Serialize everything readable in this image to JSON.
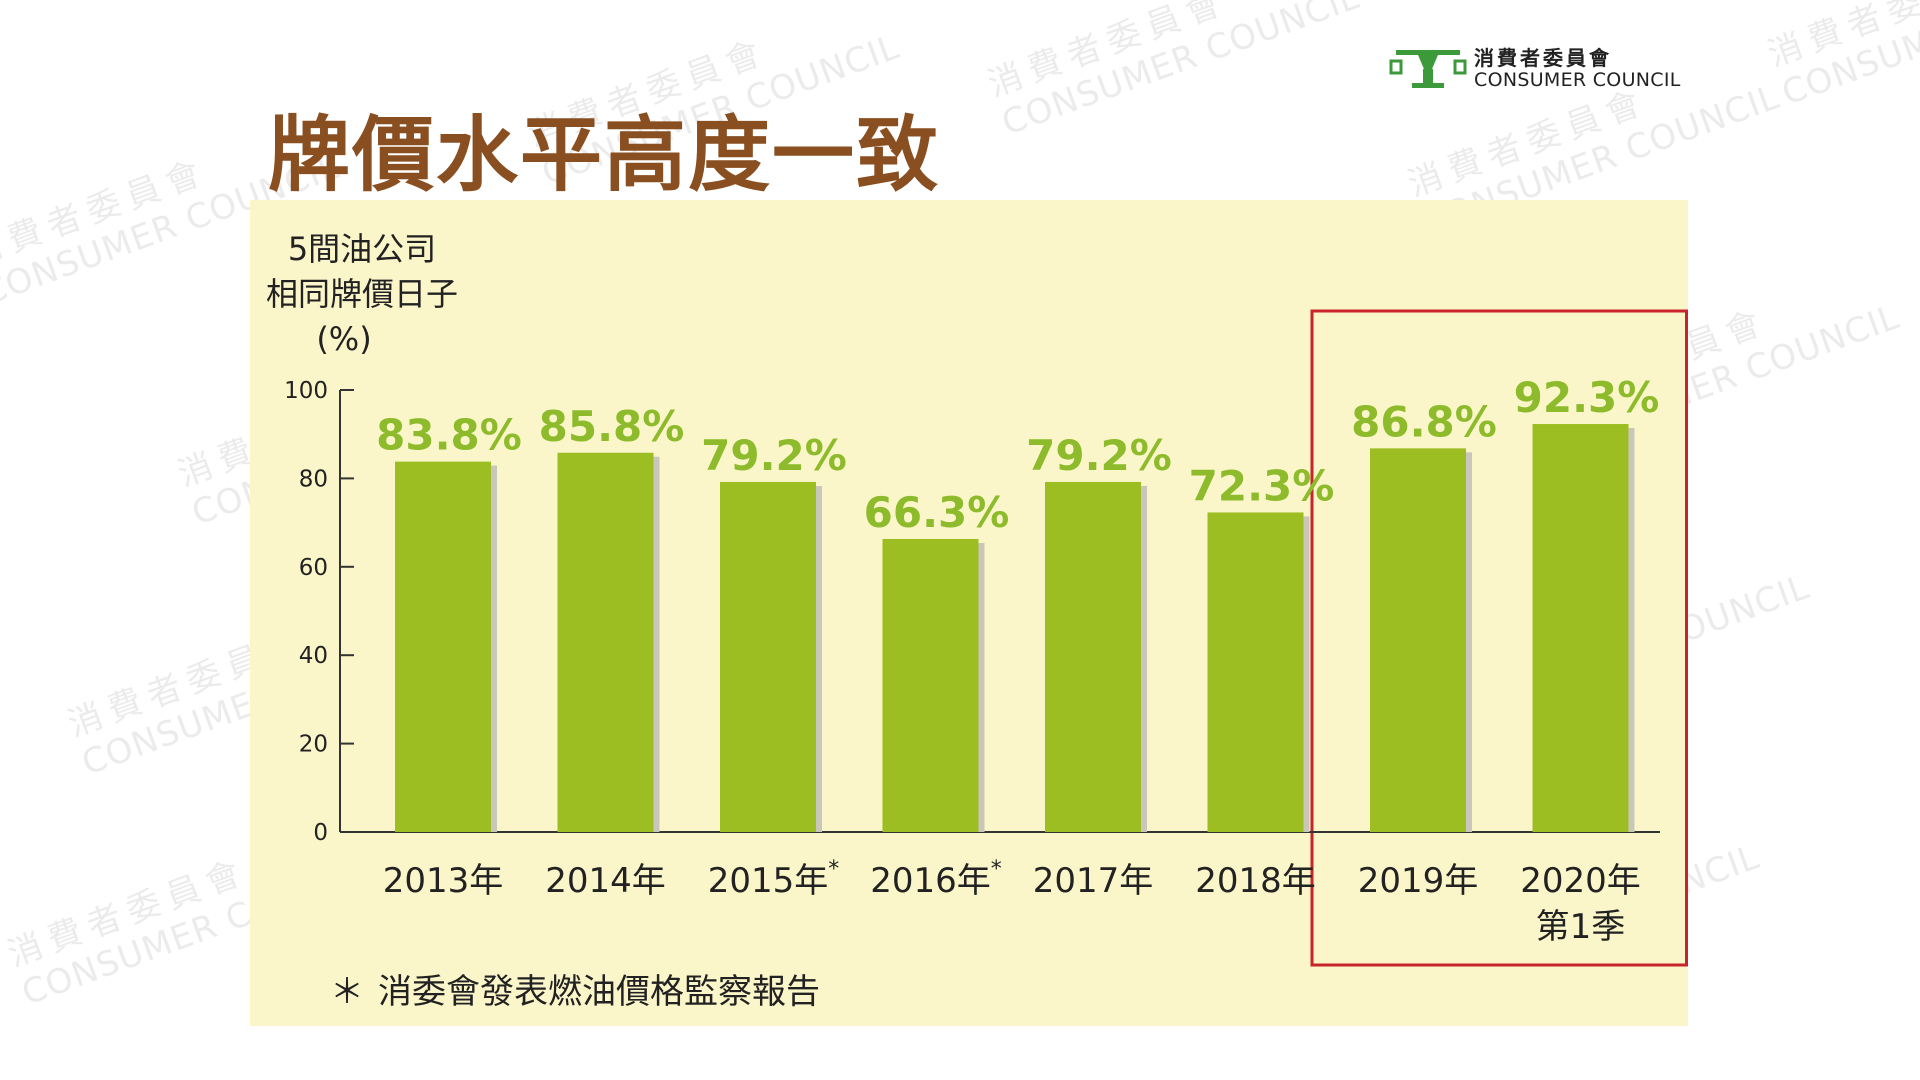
{
  "header": {
    "title": "牌價水平高度一致"
  },
  "logo": {
    "name_zh": "消費者委員會",
    "name_en": "CONSUMER COUNCIL"
  },
  "watermark": {
    "zh": "消費者委員會",
    "en": "CONSUMER COUNCIL"
  },
  "colors": {
    "bar": "#9dbe23",
    "bar_shadow": "#c9c6bb",
    "value_label": "#8dbb2c",
    "highlight_box": "#c8242b",
    "panel_bg": "#fbf6c9",
    "title": "#8a4f21"
  },
  "chart_data": {
    "type": "bar",
    "ylabel": [
      "5間油公司",
      "相同牌價日子",
      "(%)"
    ],
    "ylim": [
      0,
      100
    ],
    "yticks": [
      0,
      20,
      40,
      60,
      80,
      100
    ],
    "categories": [
      {
        "label": "2013年",
        "mark": "",
        "line2": ""
      },
      {
        "label": "2014年",
        "mark": "",
        "line2": ""
      },
      {
        "label": "2015年",
        "mark": "*",
        "line2": ""
      },
      {
        "label": "2016年",
        "mark": "*",
        "line2": ""
      },
      {
        "label": "2017年",
        "mark": "",
        "line2": ""
      },
      {
        "label": "2018年",
        "mark": "",
        "line2": ""
      },
      {
        "label": "2019年",
        "mark": "",
        "line2": ""
      },
      {
        "label": "2020年",
        "mark": "",
        "line2": "第1季"
      }
    ],
    "values": [
      83.8,
      85.8,
      79.2,
      66.3,
      79.2,
      72.3,
      86.8,
      92.3
    ],
    "value_labels": [
      "83.8%",
      "85.8%",
      "79.2%",
      "66.3%",
      "79.2%",
      "72.3%",
      "86.8%",
      "92.3%"
    ],
    "highlighted_categories": [
      "2019年",
      "2020年"
    ],
    "grid": false
  },
  "footnote": {
    "star": "＊",
    "text": "消委會發表燃油價格監察報告"
  }
}
